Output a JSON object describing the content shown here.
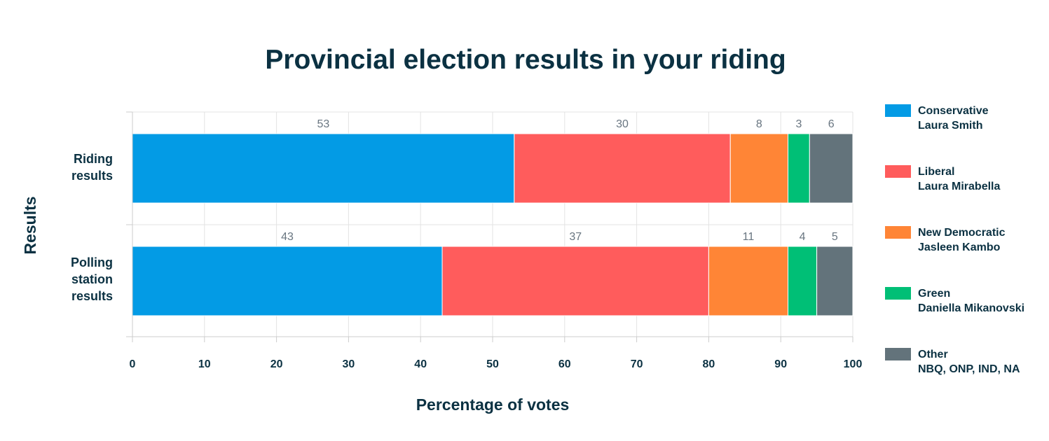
{
  "chart_data": {
    "type": "bar",
    "orientation": "horizontal",
    "stacked": true,
    "title": "Provincial election results in your riding",
    "xlabel": "Percentage of votes",
    "ylabel": "Results",
    "xlim": [
      0,
      100
    ],
    "x_ticks": [
      "0",
      "10",
      "20",
      "30",
      "40",
      "50",
      "60",
      "70",
      "80",
      "90",
      "100"
    ],
    "grid": true,
    "legend_position": "right",
    "categories": [
      [
        "Riding",
        "results"
      ],
      [
        "Polling",
        "station",
        "results"
      ]
    ],
    "series": [
      {
        "name": [
          "Conservative",
          "Laura Smith"
        ],
        "color": "#039be5",
        "values": [
          53,
          43
        ]
      },
      {
        "name": [
          "Liberal",
          "Laura Mirabella"
        ],
        "color": "#ff5c5c",
        "values": [
          30,
          37
        ]
      },
      {
        "name": [
          "New Democratic",
          "Jasleen Kambo"
        ],
        "color": "#ff8536",
        "values": [
          8,
          11
        ]
      },
      {
        "name": [
          "Green",
          "Daniella Mikanovski"
        ],
        "color": "#00bf76",
        "values": [
          3,
          4
        ]
      },
      {
        "name": [
          "Other",
          "NBQ, ONP, IND, NA"
        ],
        "color": "#63737b",
        "values": [
          6,
          5
        ]
      }
    ],
    "colors": {
      "text": "#0b3142",
      "data_label": "#687580",
      "grid": "#e3e3e3",
      "axis": "#cccccc"
    }
  }
}
